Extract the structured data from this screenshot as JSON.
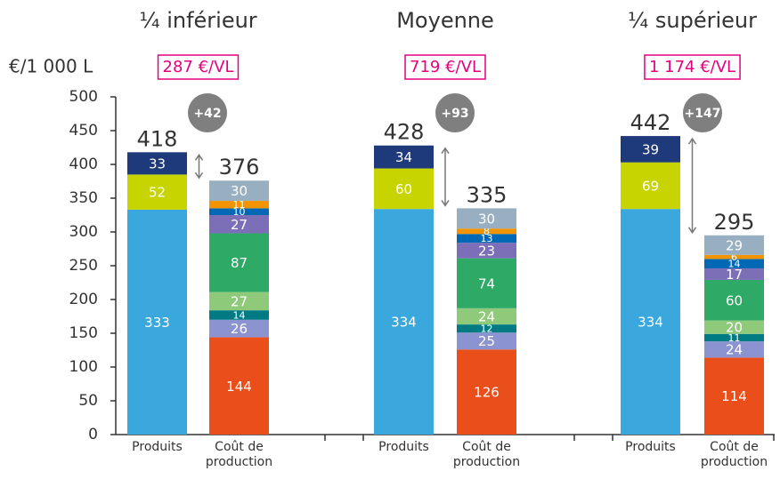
{
  "chart_data": {
    "type": "stacked_bar",
    "y_axis_label": "€/1 000 L",
    "ylim": [
      0,
      500
    ],
    "yticks": [
      0,
      50,
      100,
      150,
      200,
      250,
      300,
      350,
      400,
      450,
      500
    ],
    "bar_labels": [
      "Produits",
      "Coût de production"
    ],
    "produits_colors": [
      "#3aa8dc",
      "#c8d400",
      "#1f3a7a"
    ],
    "cout_colors": [
      "#e94e1b",
      "#8c93d1",
      "#007b84",
      "#8fc97a",
      "#2eaa66",
      "#7c6fb8",
      "#0068b4",
      "#f29400",
      "#97afc0"
    ],
    "groups": [
      {
        "name": "¼ inférieur",
        "badge": "287 €/VL",
        "difference": 42,
        "difference_label": "+42",
        "produits": {
          "total": 418,
          "values": [
            333,
            52,
            33
          ]
        },
        "cout": {
          "total": 376,
          "values": [
            144,
            26,
            14,
            27,
            87,
            27,
            10,
            11,
            30
          ]
        }
      },
      {
        "name": "Moyenne",
        "badge": "719 €/VL",
        "difference": 93,
        "difference_label": "+93",
        "produits": {
          "total": 428,
          "values": [
            334,
            60,
            34
          ]
        },
        "cout": {
          "total": 335,
          "values": [
            126,
            25,
            12,
            24,
            74,
            23,
            13,
            8,
            30
          ]
        }
      },
      {
        "name": "¼ supérieur",
        "badge": "1 174 €/VL",
        "difference": 147,
        "difference_label": "+147",
        "produits": {
          "total": 442,
          "values": [
            334,
            69,
            39
          ]
        },
        "cout": {
          "total": 295,
          "values": [
            114,
            24,
            11,
            20,
            60,
            17,
            14,
            6,
            29
          ]
        }
      }
    ]
  }
}
